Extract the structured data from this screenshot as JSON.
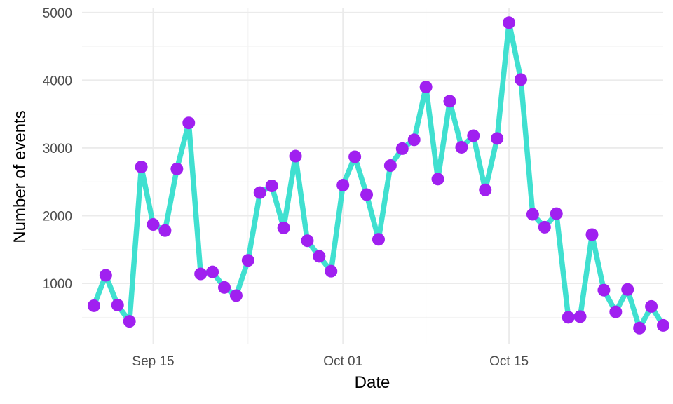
{
  "chart_data": {
    "type": "line",
    "title": "",
    "xlabel": "Date",
    "ylabel": "Number of events",
    "x_start": "2021-09-09",
    "x_end": "2021-10-28",
    "x_ticks": [
      {
        "date": "2021-09-15",
        "label": "Sep 15"
      },
      {
        "date": "2021-10-01",
        "label": "Oct 01"
      },
      {
        "date": "2021-10-15",
        "label": "Oct 15"
      }
    ],
    "ylim": [
      110,
      5060
    ],
    "y_ticks": [
      1000,
      2000,
      3000,
      4000,
      5000
    ],
    "grid": true,
    "legend": "none",
    "colors": {
      "line": "#40E0D0",
      "points": "#A020F0"
    },
    "series": [
      {
        "x": [
          "2021-09-10",
          "2021-09-11",
          "2021-09-12",
          "2021-09-13",
          "2021-09-14",
          "2021-09-15",
          "2021-09-16",
          "2021-09-17",
          "2021-09-18",
          "2021-09-19",
          "2021-09-20",
          "2021-09-21",
          "2021-09-22",
          "2021-09-23",
          "2021-09-24",
          "2021-09-25",
          "2021-09-26",
          "2021-09-27",
          "2021-09-28",
          "2021-09-29",
          "2021-09-30",
          "2021-10-01",
          "2021-10-02",
          "2021-10-03",
          "2021-10-04",
          "2021-10-05",
          "2021-10-06",
          "2021-10-07",
          "2021-10-08",
          "2021-10-09",
          "2021-10-10",
          "2021-10-11",
          "2021-10-12",
          "2021-10-13",
          "2021-10-14",
          "2021-10-15",
          "2021-10-16",
          "2021-10-17",
          "2021-10-18",
          "2021-10-19",
          "2021-10-20",
          "2021-10-21",
          "2021-10-22",
          "2021-10-23",
          "2021-10-24",
          "2021-10-25",
          "2021-10-26",
          "2021-10-27",
          "2021-10-28"
        ],
        "values": [
          670,
          1120,
          680,
          440,
          2720,
          1870,
          1780,
          2690,
          3370,
          1140,
          1170,
          940,
          820,
          1340,
          2340,
          2440,
          1820,
          2880,
          1630,
          1400,
          1180,
          2450,
          2870,
          2310,
          1650,
          2740,
          2990,
          3120,
          3900,
          2540,
          3690,
          3010,
          3180,
          2380,
          3140,
          4850,
          4010,
          2020,
          1830,
          2030,
          500,
          510,
          1720,
          900,
          580,
          910,
          340,
          660,
          380
        ]
      }
    ]
  }
}
